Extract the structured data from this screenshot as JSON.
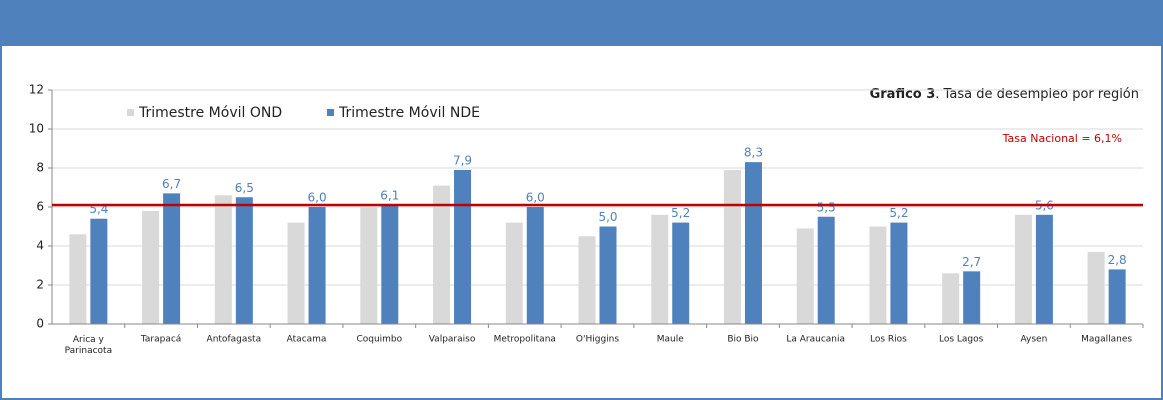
{
  "chart_data": {
    "type": "bar",
    "title_label": "Grafico 3",
    "title": ". Tasa de desempleo por región",
    "categories": [
      "Arica y Parinacota",
      "Tarapacá",
      "Antofagasta",
      "Atacama",
      "Coquimbo",
      "Valparaiso",
      "Metropolitana",
      "O'Higgins",
      "Maule",
      "Bio Bio",
      "La Araucania",
      "Los Rios",
      "Los Lagos",
      "Aysen",
      "Magallanes"
    ],
    "series": [
      {
        "name": "Trimestre Móvil OND",
        "color": "#d9d9d9",
        "values": [
          4.6,
          5.8,
          6.6,
          5.2,
          6.0,
          7.1,
          5.2,
          4.5,
          5.6,
          7.9,
          4.9,
          5.0,
          2.6,
          5.6,
          3.7
        ]
      },
      {
        "name": "Trimestre Móvil NDE",
        "color": "#4f81bd",
        "values": [
          5.4,
          6.7,
          6.5,
          6.0,
          6.1,
          7.9,
          6.0,
          5.0,
          5.2,
          8.3,
          5.5,
          5.2,
          2.7,
          5.6,
          2.8
        ],
        "value_labels": [
          "5,4",
          "6,7",
          "6,5",
          "6,0",
          "6,1",
          "7,9",
          "6,0",
          "5,0",
          "5,2",
          "8,3",
          "5,5",
          "5,2",
          "2,7",
          "5,6",
          "2,8"
        ]
      }
    ],
    "reference_line": {
      "value": 6.1,
      "label": "Tasa Nacional = 6,1%",
      "color": "#c00000"
    },
    "ylim": [
      0,
      12
    ],
    "yticks": [
      0,
      2,
      4,
      6,
      8,
      10,
      12
    ],
    "grid": true
  }
}
